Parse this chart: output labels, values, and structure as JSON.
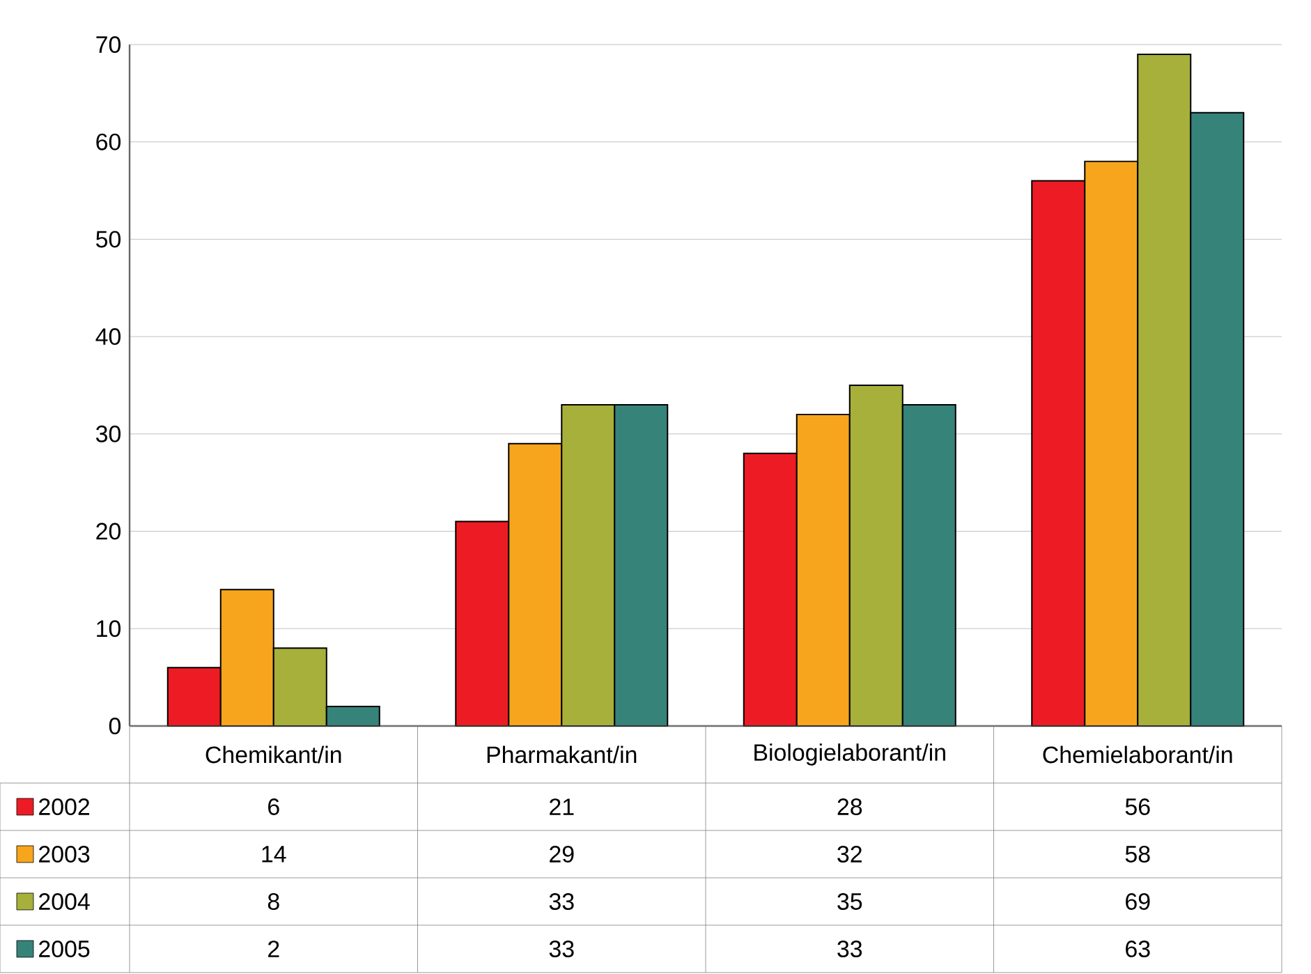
{
  "chart_data": {
    "type": "bar",
    "categories": [
      "Chemikant/in",
      "Pharmakant/in",
      "Biologielaborant/in",
      "Chemielaborant/in"
    ],
    "series": [
      {
        "name": "2002",
        "color": "#ed1c24",
        "values": [
          6,
          21,
          28,
          56
        ]
      },
      {
        "name": "2003",
        "color": "#f7a51c",
        "values": [
          14,
          29,
          32,
          58
        ]
      },
      {
        "name": "2004",
        "color": "#a6b03a",
        "values": [
          8,
          33,
          35,
          69
        ]
      },
      {
        "name": "2005",
        "color": "#36837a",
        "values": [
          2,
          33,
          33,
          63
        ]
      }
    ],
    "ylim": [
      0,
      70
    ],
    "yticks": [
      0,
      10,
      20,
      30,
      40,
      50,
      60,
      70
    ],
    "grid": "y",
    "legend": "bottom",
    "data_labels": true
  }
}
